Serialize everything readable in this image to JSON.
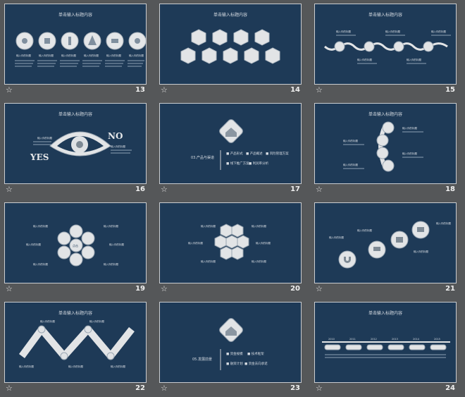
{
  "slides": [
    {
      "number": "13",
      "title": "单击输入标题内容",
      "caption": "输入你的标题"
    },
    {
      "number": "14",
      "title": "单击输入标题内容"
    },
    {
      "number": "15",
      "title": "单击输入标题内容",
      "caption": "输入你的标题"
    },
    {
      "number": "16",
      "title": "单击输入标题内容",
      "yes": "YES",
      "no": "NO",
      "caption": "输入你的标题"
    },
    {
      "number": "17",
      "heading": "03.产品与渠道",
      "bullets": [
        "产品形式",
        "产品概述",
        "风险管理方案",
        "线下推广方案",
        "利润率分析"
      ]
    },
    {
      "number": "18",
      "title": "单击输入标题内容",
      "caption": "输入你的标题"
    },
    {
      "number": "19",
      "caption": "输入你的标题",
      "center": "点击"
    },
    {
      "number": "20",
      "caption": "输入你的标题"
    },
    {
      "number": "21",
      "caption": "输入你的标题"
    },
    {
      "number": "22",
      "title": "单击输入标题内容",
      "caption": "输入你的标题"
    },
    {
      "number": "23",
      "heading": "05.发展前景",
      "bullets": [
        "资金规模",
        "技术框架",
        "融资计划",
        "资金去向承诺"
      ]
    },
    {
      "number": "24",
      "title": "单击输入标题内容",
      "years": [
        "2010",
        "2011",
        "2012",
        "2013",
        "2014",
        "2015"
      ]
    }
  ],
  "colors": {
    "page": "#555759",
    "slide": "#1e3a57",
    "light": "#e2e4e6"
  },
  "icons": [
    "star-icon",
    "eye-icon",
    "house-icon",
    "magnet-icon",
    "cart-icon"
  ]
}
